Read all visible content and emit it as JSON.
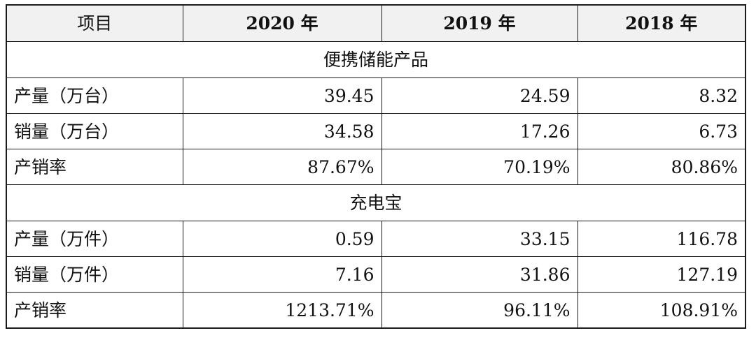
{
  "table": {
    "headers": [
      "项目",
      "2020 年",
      "2019 年",
      "2018 年"
    ],
    "sections": [
      {
        "title": "便携储能产品",
        "rows": [
          {
            "label": "产量（万台）",
            "values": [
              "39.45",
              "24.59",
              "8.32"
            ]
          },
          {
            "label": "销量（万台）",
            "values": [
              "34.58",
              "17.26",
              "6.73"
            ]
          },
          {
            "label": "产销率",
            "values": [
              "87.67%",
              "70.19%",
              "80.86%"
            ]
          }
        ]
      },
      {
        "title": "充电宝",
        "rows": [
          {
            "label": "产量（万件）",
            "values": [
              "0.59",
              "33.15",
              "116.78"
            ]
          },
          {
            "label": "销量（万件）",
            "values": [
              "7.16",
              "31.86",
              "127.19"
            ]
          },
          {
            "label": "产销率",
            "values": [
              "1213.71%",
              "96.11%",
              "108.91%"
            ]
          }
        ]
      }
    ]
  }
}
